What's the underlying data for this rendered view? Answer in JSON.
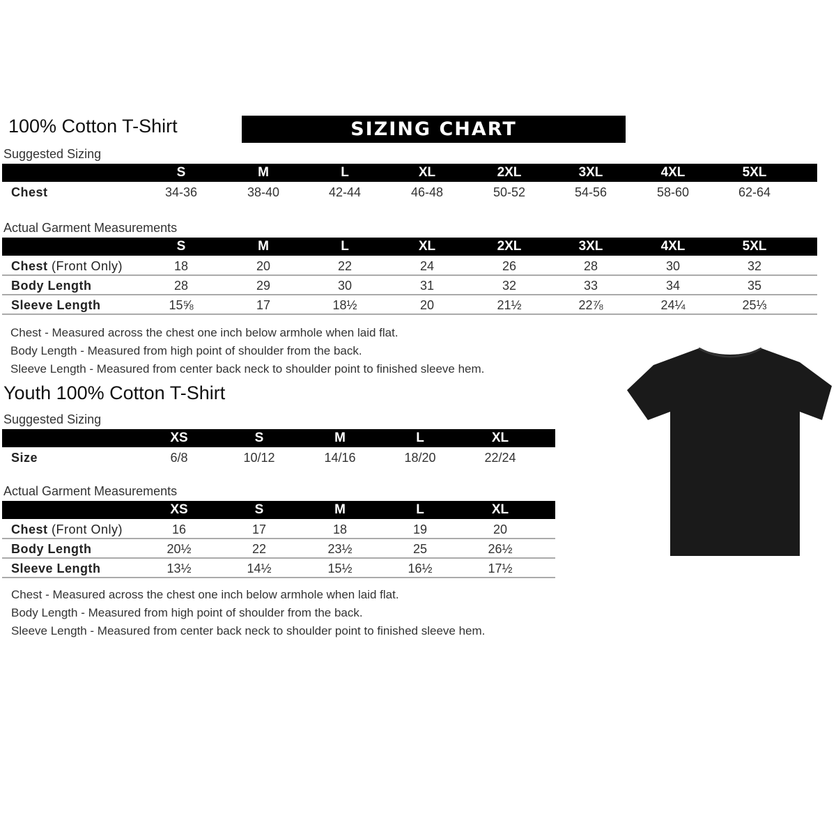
{
  "adult": {
    "title": "100% Cotton T-Shirt",
    "banner": "SIZING CHART",
    "suggested_label": "Suggested Sizing",
    "sizes": [
      "S",
      "M",
      "L",
      "XL",
      "2XL",
      "3XL",
      "4XL",
      "5XL"
    ],
    "suggested_rows": [
      {
        "label": "Chest",
        "values": [
          "34-36",
          "38-40",
          "42-44",
          "46-48",
          "50-52",
          "54-56",
          "58-60",
          "62-64"
        ]
      }
    ],
    "actual_label": "Actual Garment Measurements",
    "actual_rows": [
      {
        "label": "Chest",
        "label_suffix": " (Front Only)",
        "values": [
          "18",
          "20",
          "22",
          "24",
          "26",
          "28",
          "30",
          "32"
        ]
      },
      {
        "label": "Body Length",
        "label_suffix": "",
        "values": [
          "28",
          "29",
          "30",
          "31",
          "32",
          "33",
          "34",
          "35"
        ]
      },
      {
        "label": "Sleeve Length",
        "label_suffix": "",
        "values": [
          "15⅝",
          "17",
          "18½",
          "20",
          "21½",
          "22⅞",
          "24¼",
          "25⅓"
        ]
      }
    ],
    "notes": [
      "Chest - Measured across the chest one inch below armhole when laid flat.",
      "Body Length - Measured from high point of shoulder from the back.",
      "Sleeve Length - Measured from center back neck to shoulder point to finished sleeve hem."
    ]
  },
  "youth": {
    "title": "Youth 100% Cotton T-Shirt",
    "suggested_label": "Suggested Sizing",
    "sizes": [
      "XS",
      "S",
      "M",
      "L",
      "XL"
    ],
    "suggested_rows": [
      {
        "label": "Size",
        "values": [
          "6/8",
          "10/12",
          "14/16",
          "18/20",
          "22/24"
        ]
      }
    ],
    "actual_label": "Actual Garment Measurements",
    "actual_rows": [
      {
        "label": "Chest",
        "label_suffix": " (Front Only)",
        "values": [
          "16",
          "17",
          "18",
          "19",
          "20"
        ]
      },
      {
        "label": "Body Length",
        "label_suffix": "",
        "values": [
          "20½",
          "22",
          "23½",
          "25",
          "26½"
        ]
      },
      {
        "label": "Sleeve Length",
        "label_suffix": "",
        "values": [
          "13½",
          "14½",
          "15½",
          "16½",
          "17½"
        ]
      }
    ],
    "notes": [
      "Chest - Measured across the chest one inch below armhole when laid flat.",
      "Body Length - Measured from high point of shoulder from the back.",
      "Sleeve Length - Measured from center back neck to shoulder point to finished sleeve hem."
    ]
  },
  "colors": {
    "header_bar": "#000000",
    "row_line": "#aaaaaa",
    "tshirt": "#1a1a1a"
  }
}
